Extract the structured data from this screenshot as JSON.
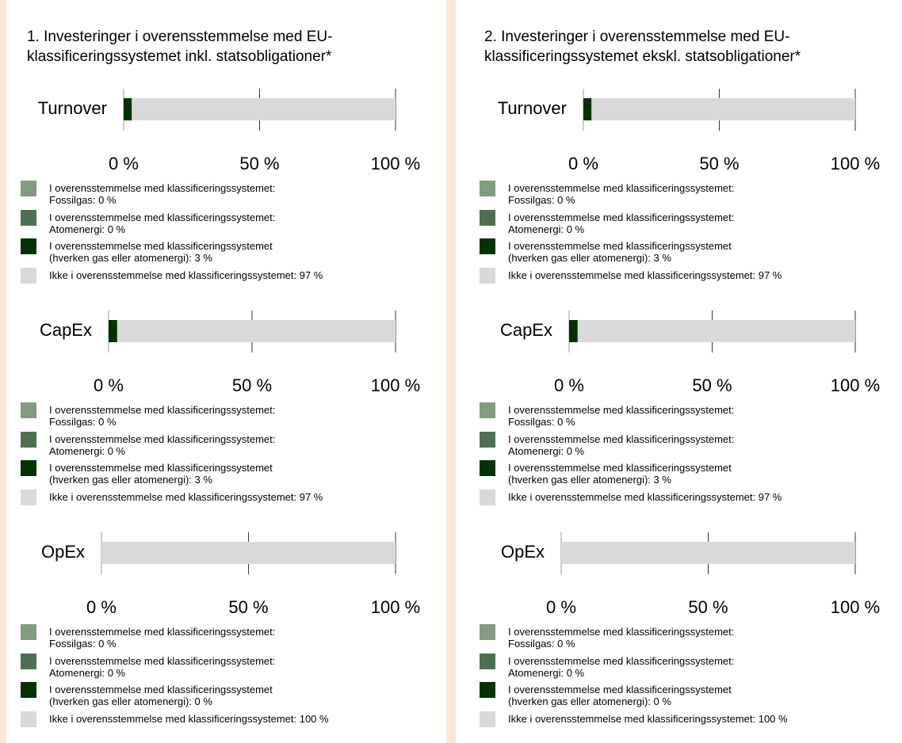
{
  "panels": [
    {
      "title": "1. Investeringer i overensstemmelse med EU-\nklassificeringssystemet inkl. statsobligationer*",
      "charts": [
        {
          "type": "bar",
          "category": "Turnover",
          "xlim": [
            0,
            100
          ],
          "xticks": [
            {
              "value": 0,
              "label": "0 %"
            },
            {
              "value": 50,
              "label": "50 %"
            },
            {
              "value": 100,
              "label": "100 %"
            }
          ],
          "series": [
            {
              "name": "I overensstemmelse med klassificeringssystemet:\nFossilgas: 0 %",
              "color": "#819c7e",
              "values": [
                0
              ]
            },
            {
              "name": "I overensstemmelse med klassificeringssystemet:\nAtomenergi: 0 %",
              "color": "#4d7150",
              "values": [
                0
              ]
            },
            {
              "name": "I overensstemmelse med klassificeringssystemet\n(hverken gas eller atomenergi): 3 %",
              "color": "#003300",
              "values": [
                3
              ]
            },
            {
              "name": "Ikke i overensstemmelse med klassificeringssystemet: 97 %",
              "color": "#d9d9d9",
              "values": [
                97
              ]
            }
          ]
        },
        {
          "type": "bar",
          "category": "CapEx",
          "xlim": [
            0,
            100
          ],
          "xticks": [
            {
              "value": 0,
              "label": "0 %"
            },
            {
              "value": 50,
              "label": "50 %"
            },
            {
              "value": 100,
              "label": "100 %"
            }
          ],
          "series": [
            {
              "name": "I overensstemmelse med klassificeringssystemet:\nFossilgas: 0 %",
              "color": "#819c7e",
              "values": [
                0
              ]
            },
            {
              "name": "I overensstemmelse med klassificeringssystemet:\nAtomenergi: 0 %",
              "color": "#4d7150",
              "values": [
                0
              ]
            },
            {
              "name": "I overensstemmelse med klassificeringssystemet\n(hverken gas eller atomenergi): 3 %",
              "color": "#003300",
              "values": [
                3
              ]
            },
            {
              "name": "Ikke i overensstemmelse med klassificeringssystemet: 97 %",
              "color": "#d9d9d9",
              "values": [
                97
              ]
            }
          ]
        },
        {
          "type": "bar",
          "category": "OpEx",
          "xlim": [
            0,
            100
          ],
          "xticks": [
            {
              "value": 0,
              "label": "0 %"
            },
            {
              "value": 50,
              "label": "50 %"
            },
            {
              "value": 100,
              "label": "100 %"
            }
          ],
          "series": [
            {
              "name": "I overensstemmelse med klassificeringssystemet:\nFossilgas: 0 %",
              "color": "#819c7e",
              "values": [
                0
              ]
            },
            {
              "name": "I overensstemmelse med klassificeringssystemet:\nAtomenergi: 0 %",
              "color": "#4d7150",
              "values": [
                0
              ]
            },
            {
              "name": "I overensstemmelse med klassificeringssystemet\n(hverken gas eller atomenergi): 0 %",
              "color": "#003300",
              "values": [
                0
              ]
            },
            {
              "name": "Ikke i overensstemmelse med klassificeringssystemet: 100 %",
              "color": "#d9d9d9",
              "values": [
                100
              ]
            }
          ]
        }
      ]
    },
    {
      "title": "2. Investeringer i overensstemmelse med EU-\nklassificeringssystemet ekskl. statsobligationer*",
      "charts": [
        {
          "type": "bar",
          "category": "Turnover",
          "xlim": [
            0,
            100
          ],
          "xticks": [
            {
              "value": 0,
              "label": "0 %"
            },
            {
              "value": 50,
              "label": "50 %"
            },
            {
              "value": 100,
              "label": "100 %"
            }
          ],
          "series": [
            {
              "name": "I overensstemmelse med klassificeringssystemet:\nFossilgas: 0 %",
              "color": "#819c7e",
              "values": [
                0
              ]
            },
            {
              "name": "I overensstemmelse med klassificeringssystemet:\nAtomenergi: 0 %",
              "color": "#4d7150",
              "values": [
                0
              ]
            },
            {
              "name": "I overensstemmelse med klassificeringssystemet\n(hverken gas eller atomenergi): 3 %",
              "color": "#003300",
              "values": [
                3
              ]
            },
            {
              "name": "Ikke i overensstemmelse med klassificeringssystemet: 97 %",
              "color": "#d9d9d9",
              "values": [
                97
              ]
            }
          ]
        },
        {
          "type": "bar",
          "category": "CapEx",
          "xlim": [
            0,
            100
          ],
          "xticks": [
            {
              "value": 0,
              "label": "0 %"
            },
            {
              "value": 50,
              "label": "50 %"
            },
            {
              "value": 100,
              "label": "100 %"
            }
          ],
          "series": [
            {
              "name": "I overensstemmelse med klassificeringssystemet:\nFossilgas: 0 %",
              "color": "#819c7e",
              "values": [
                0
              ]
            },
            {
              "name": "I overensstemmelse med klassificeringssystemet:\nAtomenergi: 0 %",
              "color": "#4d7150",
              "values": [
                0
              ]
            },
            {
              "name": "I overensstemmelse med klassificeringssystemet\n(hverken gas eller atomenergi): 3 %",
              "color": "#003300",
              "values": [
                3
              ]
            },
            {
              "name": "Ikke i overensstemmelse med klassificeringssystemet: 97 %",
              "color": "#d9d9d9",
              "values": [
                97
              ]
            }
          ]
        },
        {
          "type": "bar",
          "category": "OpEx",
          "xlim": [
            0,
            100
          ],
          "xticks": [
            {
              "value": 0,
              "label": "0 %"
            },
            {
              "value": 50,
              "label": "50 %"
            },
            {
              "value": 100,
              "label": "100 %"
            }
          ],
          "series": [
            {
              "name": "I overensstemmelse med klassificeringssystemet:\nFossilgas: 0 %",
              "color": "#819c7e",
              "values": [
                0
              ]
            },
            {
              "name": "I overensstemmelse med klassificeringssystemet:\nAtomenergi: 0 %",
              "color": "#4d7150",
              "values": [
                0
              ]
            },
            {
              "name": "I overensstemmelse med klassificeringssystemet\n(hverken gas eller atomenergi): 0 %",
              "color": "#003300",
              "values": [
                0
              ]
            },
            {
              "name": "Ikke i overensstemmelse med klassificeringssystemet: 100 %",
              "color": "#d9d9d9",
              "values": [
                100
              ]
            }
          ]
        }
      ]
    }
  ]
}
